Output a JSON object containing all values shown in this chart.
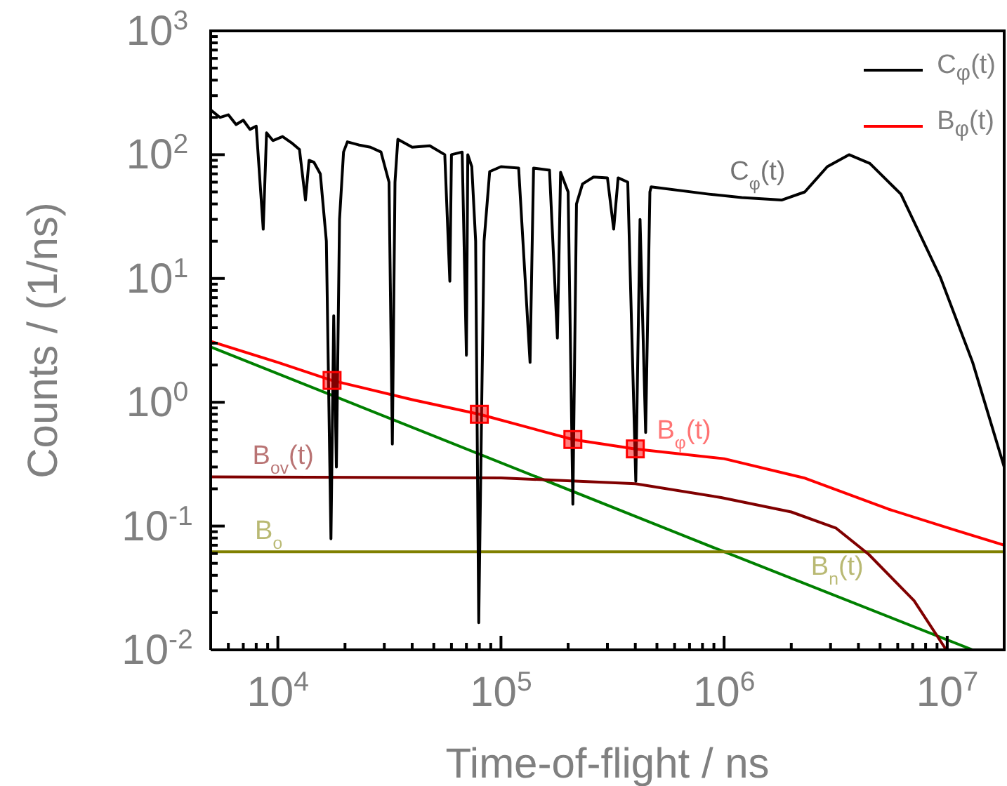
{
  "chart_data": {
    "type": "line",
    "xlabel": "Time-of-flight / ns",
    "ylabel": "Counts / (1/ns)",
    "log": "xy",
    "grid": false,
    "legend": "top right",
    "marker": "none",
    "line_style": "solid",
    "xlim": [
      5000,
      18000000
    ],
    "xticks": [
      {
        "value": 6000,
        "label": null
      },
      {
        "value": 7000,
        "label": null
      },
      {
        "value": 8000,
        "label": null
      },
      {
        "value": 9000,
        "label": null
      },
      {
        "value": 10000,
        "label": "10$^{4}$"
      },
      {
        "value": 20000,
        "label": null
      },
      {
        "value": 30000,
        "label": null
      },
      {
        "value": 40000,
        "label": null
      },
      {
        "value": 50000,
        "label": null
      },
      {
        "value": 60000,
        "label": null
      },
      {
        "value": 70000,
        "label": null
      },
      {
        "value": 80000,
        "label": null
      },
      {
        "value": 90000,
        "label": null
      },
      {
        "value": 100000,
        "label": "10$^{5}$"
      },
      {
        "value": 200000,
        "label": null
      },
      {
        "value": 300000,
        "label": null
      },
      {
        "value": 400000,
        "label": null
      },
      {
        "value": 500000,
        "label": null
      },
      {
        "value": 600000,
        "label": null
      },
      {
        "value": 700000,
        "label": null
      },
      {
        "value": 800000,
        "label": null
      },
      {
        "value": 900000,
        "label": null
      },
      {
        "value": 1000000,
        "label": "10$^{6}$"
      },
      {
        "value": 2000000,
        "label": null
      },
      {
        "value": 3000000,
        "label": null
      },
      {
        "value": 4000000,
        "label": null
      },
      {
        "value": 5000000,
        "label": null
      },
      {
        "value": 6000000,
        "label": null
      },
      {
        "value": 7000000,
        "label": null
      },
      {
        "value": 8000000,
        "label": null
      },
      {
        "value": 9000000,
        "label": null
      },
      {
        "value": 10000000,
        "label": "10$^{7}$"
      }
    ],
    "ylim": [
      0.01,
      1000
    ],
    "yticks": [
      {
        "value": 0.01,
        "label": "10$^{-2}$"
      },
      {
        "value": 0.02,
        "label": null
      },
      {
        "value": 0.03,
        "label": null
      },
      {
        "value": 0.04,
        "label": null
      },
      {
        "value": 0.05,
        "label": null
      },
      {
        "value": 0.06,
        "label": null
      },
      {
        "value": 0.07,
        "label": null
      },
      {
        "value": 0.08,
        "label": null
      },
      {
        "value": 0.09,
        "label": null
      },
      {
        "value": 0.1,
        "label": "10$^{-1}$"
      },
      {
        "value": 0.2,
        "label": null
      },
      {
        "value": 0.3,
        "label": null
      },
      {
        "value": 0.4,
        "label": null
      },
      {
        "value": 0.5,
        "label": null
      },
      {
        "value": 0.6,
        "label": null
      },
      {
        "value": 0.7,
        "label": null
      },
      {
        "value": 0.8,
        "label": null
      },
      {
        "value": 0.9,
        "label": null
      },
      {
        "value": 1,
        "label": "10$^{0}$"
      },
      {
        "value": 2,
        "label": null
      },
      {
        "value": 3,
        "label": null
      },
      {
        "value": 4,
        "label": null
      },
      {
        "value": 5,
        "label": null
      },
      {
        "value": 6,
        "label": null
      },
      {
        "value": 7,
        "label": null
      },
      {
        "value": 8,
        "label": null
      },
      {
        "value": 9,
        "label": null
      },
      {
        "value": 10,
        "label": "10$^{1}$"
      },
      {
        "value": 20,
        "label": null
      },
      {
        "value": 30,
        "label": null
      },
      {
        "value": 40,
        "label": null
      },
      {
        "value": 50,
        "label": null
      },
      {
        "value": 60,
        "label": null
      },
      {
        "value": 70,
        "label": null
      },
      {
        "value": 80,
        "label": null
      },
      {
        "value": 90,
        "label": null
      },
      {
        "value": 100,
        "label": "10$^{2}$"
      },
      {
        "value": 200,
        "label": null
      },
      {
        "value": 300,
        "label": null
      },
      {
        "value": 400,
        "label": null
      },
      {
        "value": 500,
        "label": null
      },
      {
        "value": 600,
        "label": null
      },
      {
        "value": 700,
        "label": null
      },
      {
        "value": 800,
        "label": null
      },
      {
        "value": 900,
        "label": null
      },
      {
        "value": 1000,
        "label": "10$^{3}$"
      }
    ],
    "series": [
      {
        "name": "C$_{φ}$(t)",
        "color": "#000000",
        "x": [
          5000,
          5500,
          6000,
          6500,
          7000,
          7500,
          8000,
          8600,
          8900,
          9500,
          10500,
          11500,
          12500,
          13300,
          13800,
          14500,
          15500,
          16500,
          17300,
          17800,
          18300,
          18900,
          19700,
          20500,
          23000,
          26000,
          29000,
          31500,
          32600,
          33500,
          34500,
          40000,
          48000,
          56000,
          59000,
          60000,
          67000,
          70000,
          71000,
          74000,
          77000,
          79500,
          82000,
          84000,
          89000,
          100000,
          120000,
          135000,
          140000,
          165000,
          179000,
          185000,
          200000,
          210000,
          218000,
          232000,
          260000,
          300000,
          320000,
          335000,
          370000,
          402000,
          420000,
          445000,
          465000,
          471000,
          853000,
          1200000,
          1810000,
          2300000,
          2900000,
          3630000,
          4500000,
          6200000,
          9300000,
          13000000,
          18000000
        ],
        "values": [
          230,
          200,
          210,
          175,
          190,
          160,
          170,
          25,
          150,
          130,
          140,
          125,
          110,
          43,
          90,
          87,
          70,
          20,
          0.079,
          5,
          0.3,
          30,
          105,
          127,
          120,
          115,
          105,
          60,
          0.46,
          60,
          133,
          115,
          118,
          100,
          9.5,
          100,
          105,
          2.4,
          100,
          80,
          20,
          0.0166,
          1,
          20,
          73,
          80,
          78,
          2.1,
          78,
          75,
          3.3,
          72,
          50,
          0.15,
          40,
          58,
          66,
          65,
          25,
          65,
          60,
          0.23,
          30,
          0.57,
          50,
          55,
          48,
          45,
          43,
          50,
          80,
          100,
          85,
          48,
          10.3,
          2.1,
          0.3
        ]
      },
      {
        "name": "B$_{φ}$(t)",
        "color": "#ff0000",
        "x": [
          5000,
          10000,
          17500,
          40000,
          80000,
          210000,
          400000,
          1000000,
          2280000,
          5450000,
          10600000,
          18000000
        ],
        "values": [
          3.1,
          2.1,
          1.5,
          1.05,
          0.8,
          0.5,
          0.42,
          0.35,
          0.245,
          0.137,
          0.094,
          0.07
        ]
      },
      {
        "type": "scatter",
        "color": "#ff0000",
        "marker": "square",
        "x": [
          17500,
          80000,
          210000,
          400000
        ],
        "values": [
          1.5,
          0.8,
          0.5,
          0.42
        ]
      },
      {
        "color": "#800000",
        "x": [
          5000,
          100000,
          400000,
          970000,
          2000000,
          3180000,
          4450000,
          7100000,
          9900000
        ],
        "values": [
          0.25,
          0.245,
          0.22,
          0.17,
          0.13,
          0.096,
          0.059,
          0.025,
          0.01
        ]
      },
      {
        "color": "#808000",
        "x": [
          5000,
          18000000
        ],
        "values": [
          0.062,
          0.062
        ]
      },
      {
        "color": "#008000",
        "x": [
          5000,
          1000000,
          13000000
        ],
        "values": [
          2.8,
          0.062,
          0.01
        ]
      }
    ],
    "annotations": [
      {
        "text": "C$_{φ}$(t)",
        "x": 1060000,
        "y": 50
      },
      {
        "text": "B$_{φ}$(t)",
        "x": 500000,
        "y": 0.4
      },
      {
        "text": "B$_{ov}$(t)",
        "x": 7700,
        "y": 0.25
      },
      {
        "text": "B$_{o}$",
        "x": 7900,
        "y": 0.062
      },
      {
        "text": "B$_{n}$(t)",
        "x": 2450000,
        "y": 0.032
      }
    ]
  }
}
